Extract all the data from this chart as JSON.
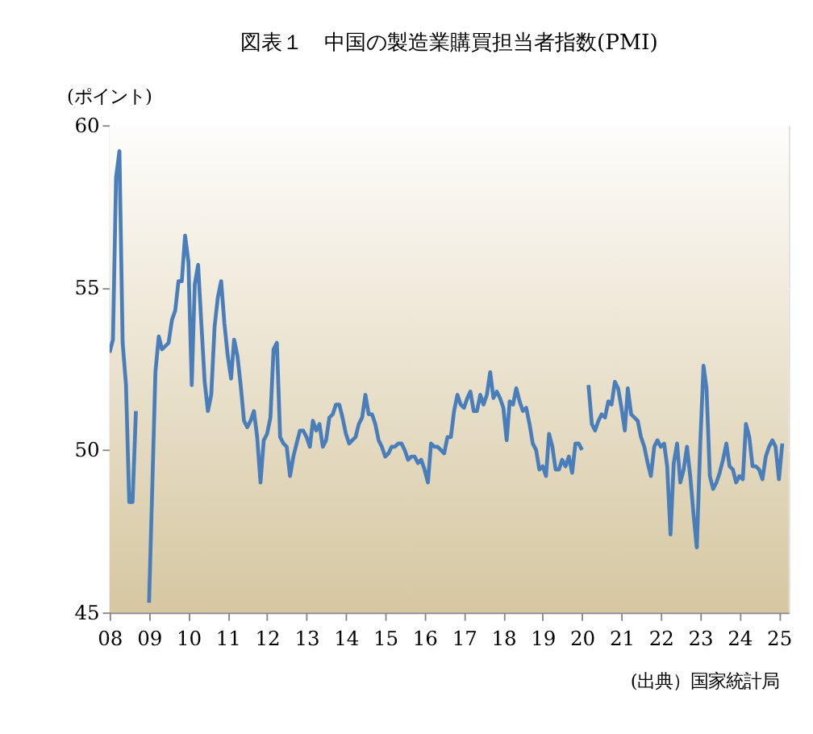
{
  "chart_data": {
    "type": "line",
    "title": "図表１　中国の製造業購買担当者指数(PMI)",
    "ylabel": "(ポイント)",
    "annotations": [
      "(出典）国家統計局"
    ],
    "x": [
      "2008-01",
      "2008-02",
      "2008-03",
      "2008-04",
      "2008-05",
      "2008-06",
      "2008-07",
      "2008-08",
      "2008-09",
      "2008-10",
      "2008-11",
      "2008-12",
      "2009-01",
      "2009-02",
      "2009-03",
      "2009-04",
      "2009-05",
      "2009-06",
      "2009-07",
      "2009-08",
      "2009-09",
      "2009-10",
      "2009-11",
      "2009-12",
      "2010-01",
      "2010-02",
      "2010-03",
      "2010-04",
      "2010-05",
      "2010-06",
      "2010-07",
      "2010-08",
      "2010-09",
      "2010-10",
      "2010-11",
      "2010-12",
      "2011-01",
      "2011-02",
      "2011-03",
      "2011-04",
      "2011-05",
      "2011-06",
      "2011-07",
      "2011-08",
      "2011-09",
      "2011-10",
      "2011-11",
      "2011-12",
      "2012-01",
      "2012-02",
      "2012-03",
      "2012-04",
      "2012-05",
      "2012-06",
      "2012-07",
      "2012-08",
      "2012-09",
      "2012-10",
      "2012-11",
      "2012-12",
      "2013-01",
      "2013-02",
      "2013-03",
      "2013-04",
      "2013-05",
      "2013-06",
      "2013-07",
      "2013-08",
      "2013-09",
      "2013-10",
      "2013-11",
      "2013-12",
      "2014-01",
      "2014-02",
      "2014-03",
      "2014-04",
      "2014-05",
      "2014-06",
      "2014-07",
      "2014-08",
      "2014-09",
      "2014-10",
      "2014-11",
      "2014-12",
      "2015-01",
      "2015-02",
      "2015-03",
      "2015-04",
      "2015-05",
      "2015-06",
      "2015-07",
      "2015-08",
      "2015-09",
      "2015-10",
      "2015-11",
      "2015-12",
      "2016-01",
      "2016-02",
      "2016-03",
      "2016-04",
      "2016-05",
      "2016-06",
      "2016-07",
      "2016-08",
      "2016-09",
      "2016-10",
      "2016-11",
      "2016-12",
      "2017-01",
      "2017-02",
      "2017-03",
      "2017-04",
      "2017-05",
      "2017-06",
      "2017-07",
      "2017-08",
      "2017-09",
      "2017-10",
      "2017-11",
      "2017-12",
      "2018-01",
      "2018-02",
      "2018-03",
      "2018-04",
      "2018-05",
      "2018-06",
      "2018-07",
      "2018-08",
      "2018-09",
      "2018-10",
      "2018-11",
      "2018-12",
      "2019-01",
      "2019-02",
      "2019-03",
      "2019-04",
      "2019-05",
      "2019-06",
      "2019-07",
      "2019-08",
      "2019-09",
      "2019-10",
      "2019-11",
      "2019-12",
      "2020-01",
      "2020-02",
      "2020-03",
      "2020-04",
      "2020-05",
      "2020-06",
      "2020-07",
      "2020-08",
      "2020-09",
      "2020-10",
      "2020-11",
      "2020-12",
      "2021-01",
      "2021-02",
      "2021-03",
      "2021-04",
      "2021-05",
      "2021-06",
      "2021-07",
      "2021-08",
      "2021-09",
      "2021-10",
      "2021-11",
      "2021-12",
      "2022-01",
      "2022-02",
      "2022-03",
      "2022-04",
      "2022-05",
      "2022-06",
      "2022-07",
      "2022-08",
      "2022-09",
      "2022-10",
      "2022-11",
      "2022-12",
      "2023-01",
      "2023-02",
      "2023-03",
      "2023-04",
      "2023-05",
      "2023-06",
      "2023-07",
      "2023-08",
      "2023-09",
      "2023-10",
      "2023-11",
      "2023-12",
      "2024-01",
      "2024-02",
      "2024-03",
      "2024-04",
      "2024-05",
      "2024-06",
      "2024-07",
      "2024-08",
      "2024-09",
      "2024-10",
      "2024-11",
      "2024-12",
      "2025-01",
      "2025-02"
    ],
    "series": [
      {
        "color": "#4a7ebb",
        "values": [
          53.0,
          53.4,
          58.4,
          59.2,
          53.3,
          52.0,
          48.4,
          48.4,
          51.2,
          null,
          null,
          null,
          45.3,
          49.0,
          52.4,
          53.5,
          53.1,
          53.2,
          53.3,
          54.0,
          54.3,
          55.2,
          55.2,
          56.6,
          55.8,
          52.0,
          55.1,
          55.7,
          53.9,
          52.1,
          51.2,
          51.7,
          53.8,
          54.7,
          55.2,
          53.9,
          52.9,
          52.2,
          53.4,
          52.9,
          52.0,
          50.9,
          50.7,
          50.9,
          51.2,
          50.4,
          49.0,
          50.3,
          50.5,
          51.0,
          53.1,
          53.3,
          50.4,
          50.2,
          50.1,
          49.2,
          49.8,
          50.2,
          50.6,
          50.6,
          50.4,
          50.1,
          50.9,
          50.6,
          50.8,
          50.1,
          50.3,
          51.0,
          51.1,
          51.4,
          51.4,
          51.0,
          50.5,
          50.2,
          50.3,
          50.4,
          50.8,
          51.0,
          51.7,
          51.1,
          51.1,
          50.8,
          50.3,
          50.1,
          49.8,
          49.9,
          50.1,
          50.1,
          50.2,
          50.2,
          50.0,
          49.7,
          49.8,
          49.8,
          49.6,
          49.7,
          49.4,
          49.0,
          50.2,
          50.1,
          50.1,
          50.0,
          49.9,
          50.4,
          50.4,
          51.2,
          51.7,
          51.4,
          51.3,
          51.6,
          51.8,
          51.2,
          51.2,
          51.7,
          51.4,
          51.7,
          52.4,
          51.6,
          51.8,
          51.6,
          51.3,
          50.3,
          51.5,
          51.4,
          51.9,
          51.5,
          51.2,
          51.3,
          50.8,
          50.2,
          50.0,
          49.4,
          49.5,
          49.2,
          50.5,
          50.1,
          49.4,
          49.4,
          49.7,
          49.5,
          49.8,
          49.3,
          50.2,
          50.2,
          50.0,
          null,
          52.0,
          50.8,
          50.6,
          50.9,
          51.1,
          51.0,
          51.5,
          51.4,
          52.1,
          51.9,
          51.3,
          50.6,
          51.9,
          51.1,
          51.0,
          50.9,
          50.4,
          50.1,
          49.6,
          49.2,
          50.1,
          50.3,
          50.1,
          50.2,
          49.5,
          47.4,
          49.6,
          50.2,
          49.0,
          49.4,
          50.1,
          49.2,
          48.0,
          47.0,
          50.1,
          52.6,
          51.9,
          49.2,
          48.8,
          49.0,
          49.3,
          49.7,
          50.2,
          49.5,
          49.4,
          49.0,
          49.2,
          49.1,
          50.8,
          50.4,
          49.5,
          49.5,
          49.4,
          49.1,
          49.8,
          50.1,
          50.3,
          50.1,
          49.1,
          50.2
        ]
      }
    ],
    "xlim": [
      "2008-01",
      "2025-04"
    ],
    "xticks": [
      {
        "value": "2008",
        "label": "08"
      },
      {
        "value": "2009",
        "label": "09"
      },
      {
        "value": "2010",
        "label": "10"
      },
      {
        "value": "2011",
        "label": "11"
      },
      {
        "value": "2012",
        "label": "12"
      },
      {
        "value": "2013",
        "label": "13"
      },
      {
        "value": "2014",
        "label": "14"
      },
      {
        "value": "2015",
        "label": "15"
      },
      {
        "value": "2016",
        "label": "16"
      },
      {
        "value": "2017",
        "label": "17"
      },
      {
        "value": "2018",
        "label": "18"
      },
      {
        "value": "2019",
        "label": "19"
      },
      {
        "value": "2020",
        "label": "20"
      },
      {
        "value": "2021",
        "label": "21"
      },
      {
        "value": "2022",
        "label": "22"
      },
      {
        "value": "2023",
        "label": "23"
      },
      {
        "value": "2024",
        "label": "24"
      },
      {
        "value": "2025",
        "label": "25"
      }
    ],
    "ylim": [
      45,
      60
    ],
    "yticks": [
      45,
      50,
      55,
      60
    ],
    "grid": "y",
    "legend": false,
    "marker": "none",
    "line_style": "solid"
  }
}
